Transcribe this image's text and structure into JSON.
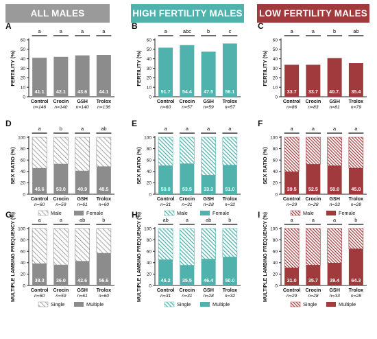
{
  "banners": [
    {
      "label": "ALL MALES",
      "color": "#9a9a9a"
    },
    {
      "label": "HIGH FERTILITY MALES",
      "color": "#4fb2ad"
    },
    {
      "label": "LOW FERTILITY MALES",
      "color": "#a13a3c"
    }
  ],
  "colors": {
    "gray": "#8c8c8c",
    "teal": "#4fb2ad",
    "red": "#a13a3c"
  },
  "categories": [
    "Control",
    "Crocin",
    "GSH",
    "Trolox"
  ],
  "row_ylabels": [
    "FERTILITY (%)",
    "SEX RATIO (%)",
    "MULTIPLE LAMBING FREQUENCY (%)"
  ],
  "chart_data": [
    {
      "panel": "A",
      "type": "bar",
      "group": "ALL MALES",
      "ylabel": "FERTILITY (%)",
      "ylim": [
        0,
        60
      ],
      "yticks": [
        "0",
        "10",
        "20",
        "30",
        "40",
        "50",
        "60"
      ],
      "categories": [
        "Control",
        "Crocin",
        "GSH",
        "Trolox"
      ],
      "values": [
        41.1,
        42.1,
        43.6,
        44.1
      ],
      "value_labels": [
        "41.1",
        "42.1",
        "43.6",
        "44.1"
      ],
      "n_labels": [
        "n=146",
        "n=140",
        "n=140",
        "n=136"
      ],
      "sig": [
        "a",
        "a",
        "a",
        "a"
      ]
    },
    {
      "panel": "B",
      "type": "bar",
      "group": "HIGH FERTILITY MALES",
      "ylabel": "FERTILITY (%)",
      "ylim": [
        0,
        60
      ],
      "yticks": [
        "0",
        "10",
        "20",
        "30",
        "40",
        "50",
        "60"
      ],
      "categories": [
        "Control",
        "Crocin",
        "GSH",
        "Trolox"
      ],
      "values": [
        51.7,
        54.4,
        47.5,
        56.1
      ],
      "value_labels": [
        "51.7",
        "54.4",
        "47.5",
        "56.1"
      ],
      "n_labels": [
        "n=60",
        "n=57",
        "n=59",
        "n=57"
      ],
      "sig": [
        "a",
        "abc",
        "b",
        "c"
      ]
    },
    {
      "panel": "C",
      "type": "bar",
      "group": "LOW FERTILITY MALES",
      "ylabel": "FERTILITY (%)",
      "ylim": [
        0,
        60
      ],
      "yticks": [
        "0",
        "10",
        "20",
        "30",
        "40",
        "50",
        "60"
      ],
      "categories": [
        "Control",
        "Crocin",
        "GSH",
        "Trolox"
      ],
      "values": [
        33.7,
        33.7,
        40.7,
        35.4
      ],
      "value_labels": [
        "33.7",
        "33.7",
        "40.7.",
        "35.4"
      ],
      "n_labels": [
        "n=86",
        "n=83",
        "n=81",
        "n=79"
      ],
      "sig": [
        "a",
        "a",
        "b",
        "ab"
      ]
    },
    {
      "panel": "D",
      "type": "stacked_bar",
      "group": "ALL MALES",
      "ylabel": "SEX RATIO (%)",
      "ylim": [
        0,
        100
      ],
      "yticks": [
        "0",
        "20",
        "40",
        "60",
        "80",
        "100"
      ],
      "categories": [
        "Control",
        "Crocin",
        "GSH",
        "Trolox"
      ],
      "values": [
        45.6,
        53.0,
        40.9,
        48.5
      ],
      "value_labels": [
        "45.6",
        "53.0",
        "40.9",
        "48.5"
      ],
      "n_labels": [
        "n=60",
        "n=59",
        "n=61",
        "n=60"
      ],
      "sig": [
        "a",
        "b",
        "a",
        "ab"
      ],
      "series": [
        {
          "name": "Male"
        },
        {
          "name": "Female"
        }
      ]
    },
    {
      "panel": "E",
      "type": "stacked_bar",
      "group": "HIGH FERTILITY MALES",
      "ylabel": "SEX RATIO (%)",
      "ylim": [
        0,
        100
      ],
      "yticks": [
        "0",
        "20",
        "40",
        "60",
        "80",
        "100"
      ],
      "categories": [
        "Control",
        "Crocin",
        "GSH",
        "Trolox"
      ],
      "values": [
        50.0,
        53.5,
        33.3,
        51.0
      ],
      "value_labels": [
        "50.0",
        "53.5",
        "33.3",
        "51.0"
      ],
      "n_labels": [
        "n=31",
        "n=31",
        "n=28",
        "n=32"
      ],
      "sig": [
        "a",
        "a",
        "a",
        "a"
      ],
      "series": [
        {
          "name": "Male"
        },
        {
          "name": "Female"
        }
      ]
    },
    {
      "panel": "F",
      "type": "stacked_bar",
      "group": "LOW FERTILITY MALES",
      "ylabel": "SEX RATIO (%)",
      "ylim": [
        0,
        100
      ],
      "yticks": [
        "0",
        "20",
        "40",
        "60",
        "80",
        "100"
      ],
      "categories": [
        "Control",
        "Crocin",
        "GSH",
        "Trolox"
      ],
      "values": [
        39.5,
        52.5,
        50.0,
        45.8
      ],
      "value_labels": [
        "39.5",
        "52.5",
        "50.0",
        "45.8"
      ],
      "n_labels": [
        "n=29",
        "n=28",
        "n=33",
        "n=28"
      ],
      "sig": [
        "a",
        "a",
        "a",
        "a"
      ],
      "series": [
        {
          "name": "Male"
        },
        {
          "name": "Female"
        }
      ]
    },
    {
      "panel": "G",
      "type": "stacked_bar",
      "group": "ALL MALES",
      "ylabel": "MULTIPLE LAMBING FREQUENCY (%)",
      "ylim": [
        0,
        100
      ],
      "yticks": [
        "0",
        "20",
        "40",
        "60",
        "80",
        "100"
      ],
      "categories": [
        "Control",
        "Crocin",
        "GSH",
        "Trolox"
      ],
      "values": [
        38.3,
        36.0,
        42.6,
        56.6
      ],
      "value_labels": [
        "38.3",
        "36.0",
        "42.6",
        "56.6"
      ],
      "n_labels": [
        "n=60",
        "n=59",
        "n=61",
        "n=60"
      ],
      "sig": [
        "a",
        "a",
        "ab",
        "b"
      ],
      "series": [
        {
          "name": "Single"
        },
        {
          "name": "Multiple"
        }
      ]
    },
    {
      "panel": "H",
      "type": "stacked_bar",
      "group": "HIGH FERTILITY MALES",
      "ylabel": "MULTIPLE LAMBING FREQUENCY (%)",
      "ylim": [
        0,
        100
      ],
      "yticks": [
        "0",
        "20",
        "40",
        "60",
        "80",
        "100"
      ],
      "categories": [
        "Control",
        "Crocin",
        "GSH",
        "Trolox"
      ],
      "values": [
        45.2,
        35.5,
        46.4,
        50.0
      ],
      "value_labels": [
        "45.2",
        "35.5",
        "46.4",
        "50.0"
      ],
      "n_labels": [
        "n=31",
        "n=31",
        "n=28",
        "n=32"
      ],
      "sig": [
        "ab",
        "a",
        "ab",
        "b"
      ],
      "series": [
        {
          "name": "Single"
        },
        {
          "name": "Multiple"
        }
      ]
    },
    {
      "panel": "I",
      "type": "stacked_bar",
      "group": "LOW FERTILITY MALES",
      "ylabel": "MULTIPLE LAMBING FREQUENCY (%)",
      "ylim": [
        0,
        100
      ],
      "yticks": [
        "0",
        "20",
        "40",
        "60",
        "80",
        "100"
      ],
      "categories": [
        "Control",
        "Crocin",
        "GSH",
        "Trolox"
      ],
      "values": [
        31.0,
        35.7,
        39.4,
        64.3
      ],
      "value_labels": [
        "31.0",
        "35.7",
        "39.4",
        "64.3"
      ],
      "n_labels": [
        "n=29",
        "n=28",
        "n=33",
        "n=28"
      ],
      "sig": [
        "a",
        "a",
        "a",
        "b"
      ],
      "series": [
        {
          "name": "Single"
        },
        {
          "name": "Multiple"
        }
      ]
    }
  ]
}
